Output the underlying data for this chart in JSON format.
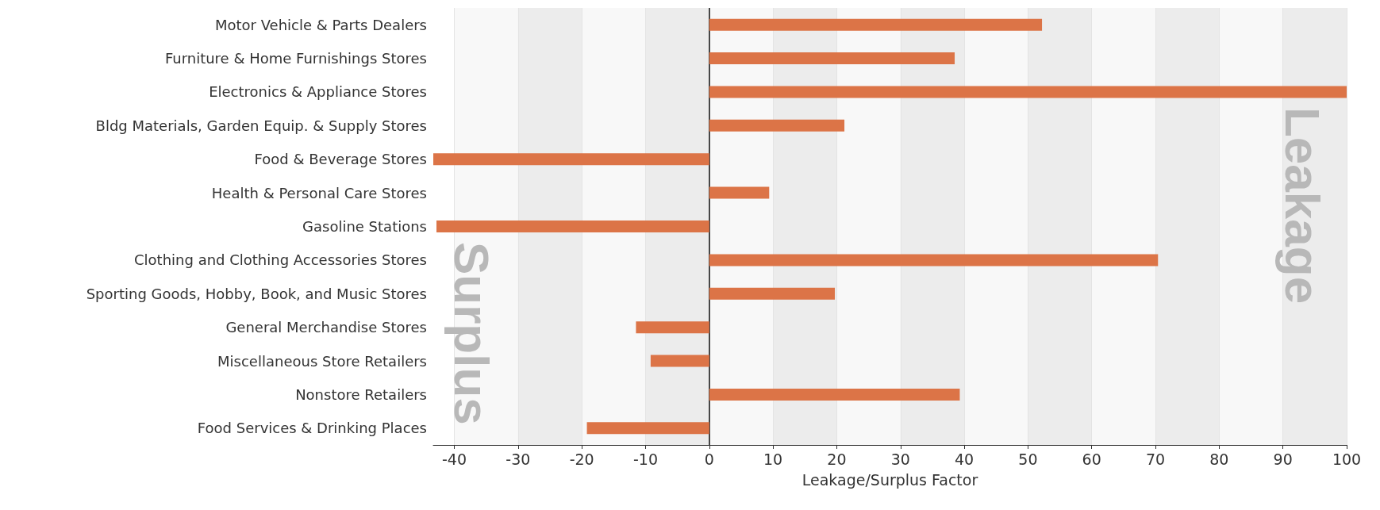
{
  "chart_data": {
    "type": "bar",
    "orientation": "horizontal",
    "xlabel": "Leakage/Surplus Factor",
    "categories": [
      "Motor Vehicle & Parts Dealers",
      "Furniture & Home Furnishings Stores",
      "Electronics & Appliance Stores",
      "Bldg Materials, Garden Equip. & Supply Stores",
      "Food & Beverage Stores",
      "Health & Personal Care Stores",
      "Gasoline Stations",
      "Clothing and Clothing Accessories Stores",
      "Sporting Goods, Hobby, Book, and Music Stores",
      "General Merchandise Stores",
      "Miscellaneous Store Retailers",
      "Nonstore Retailers",
      "Food Services & Drinking Places"
    ],
    "values": [
      52.2,
      38.5,
      100,
      21.2,
      -43.3,
      9.4,
      -42.8,
      70.4,
      19.7,
      -11.5,
      -9.2,
      39.3,
      -19.2
    ],
    "color": "#dc7447",
    "xlim": [
      -43.3,
      100
    ],
    "xticks": [
      -40,
      -30,
      -20,
      -10,
      0,
      10,
      20,
      30,
      40,
      50,
      60,
      70,
      80,
      90,
      100
    ],
    "annotations": [
      "Surplus",
      "Leakage"
    ],
    "grid": "x"
  }
}
